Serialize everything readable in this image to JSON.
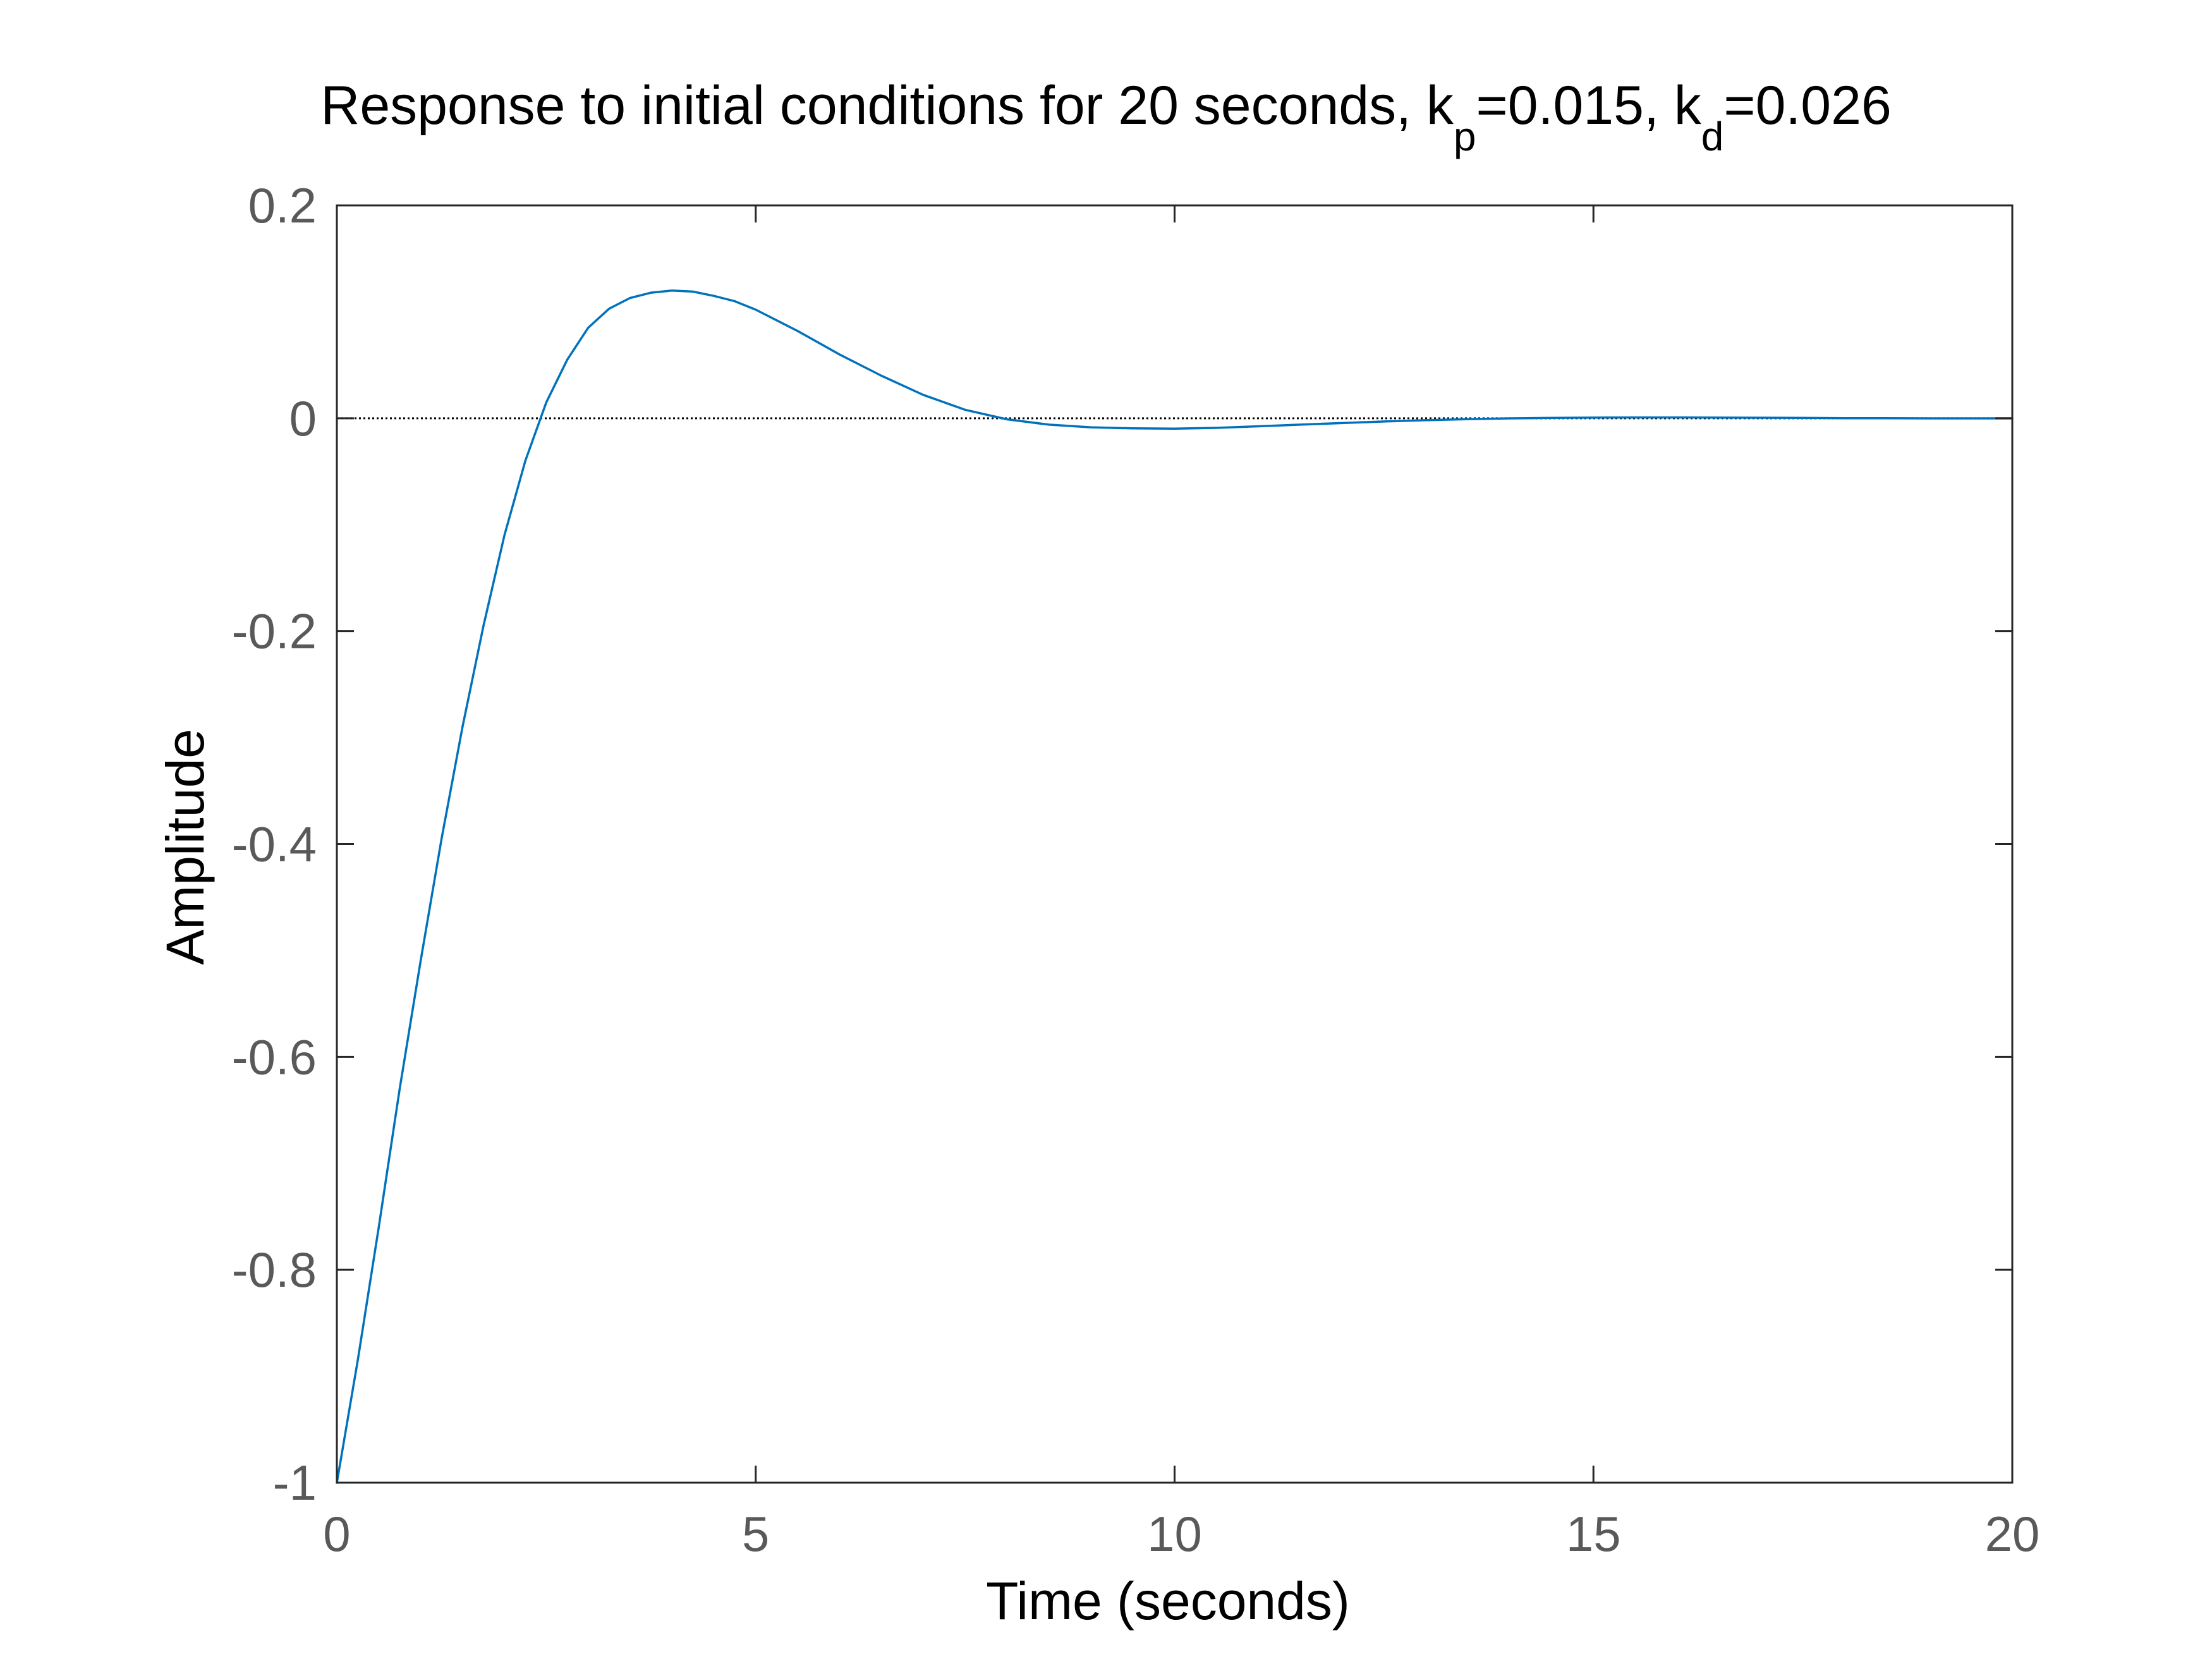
{
  "chart_data": {
    "type": "line",
    "title_parts": {
      "main": "Response to initial conditions for 20 seconds, k",
      "kp_sub": "p",
      "kp_value": "=0.015, k",
      "kd_sub": "d",
      "kd_value": "=0.026"
    },
    "xlabel": "Time (seconds)",
    "ylabel": "Amplitude",
    "xlim": [
      0,
      20
    ],
    "ylim": [
      -1,
      0.2
    ],
    "x_ticks": [
      0,
      5,
      10,
      15,
      20
    ],
    "x_tick_labels": [
      "0",
      "5",
      "10",
      "15",
      "20"
    ],
    "y_ticks": [
      0.2,
      0,
      -0.2,
      -0.4,
      -0.6,
      -0.8,
      -1
    ],
    "y_tick_labels": [
      "0.2",
      "0",
      "-0.2",
      "-0.4",
      "-0.6",
      "-0.8",
      "-1"
    ],
    "grid": false,
    "reference_line": {
      "y": 0,
      "style": "dotted",
      "color": "#000000"
    },
    "series": [
      {
        "color": "#0072BD",
        "x": [
          0,
          0.25,
          0.5,
          0.75,
          1,
          1.25,
          1.5,
          1.75,
          2,
          2.25,
          2.5,
          2.75,
          3,
          3.25,
          3.5,
          3.75,
          4,
          4.25,
          4.5,
          4.75,
          5,
          5.5,
          6,
          6.5,
          7,
          7.5,
          8,
          8.5,
          9,
          9.5,
          10,
          10.5,
          11,
          11.5,
          12,
          12.5,
          13,
          13.5,
          14,
          14.5,
          15,
          15.5,
          16,
          16.5,
          17,
          17.5,
          18,
          18.5,
          19,
          19.5,
          20
        ],
        "y": [
          -1,
          -0.885,
          -0.76,
          -0.63,
          -0.51,
          -0.395,
          -0.29,
          -0.195,
          -0.11,
          -0.04,
          0.015,
          0.055,
          0.085,
          0.103,
          0.113,
          0.118,
          0.12,
          0.119,
          0.115,
          0.11,
          0.102,
          0.082,
          0.06,
          0.04,
          0.022,
          0.008,
          -0.001,
          -0.006,
          -0.0085,
          -0.0095,
          -0.0098,
          -0.009,
          -0.0075,
          -0.006,
          -0.0045,
          -0.003,
          -0.0018,
          -0.0008,
          -0.0001,
          0.0004,
          0.0007,
          0.0008,
          0.0008,
          0.0007,
          0.0005,
          0.0003,
          0.0001,
          0,
          -0.0001,
          -0.0001,
          -0.0001
        ]
      }
    ]
  }
}
